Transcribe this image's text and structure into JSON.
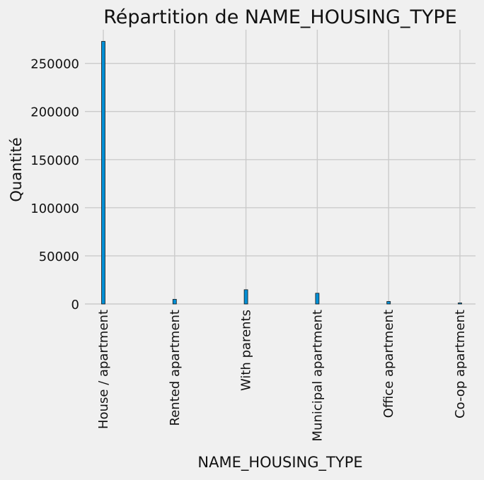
{
  "chart_data": {
    "type": "bar",
    "title": "Répartition de NAME_HOUSING_TYPE",
    "xlabel": "NAME_HOUSING_TYPE",
    "ylabel": "Quantité",
    "categories": [
      "House / apartment",
      "Rented apartment",
      "With parents",
      "Municipal apartment",
      "Office apartment",
      "Co-op apartment"
    ],
    "values": [
      272868,
      4881,
      14840,
      11183,
      2617,
      1122
    ],
    "yticks": [
      0,
      50000,
      100000,
      150000,
      200000,
      250000
    ],
    "ytick_labels": [
      "0",
      "50000",
      "100000",
      "150000",
      "200000",
      "250000"
    ],
    "ylim": [
      0,
      285000
    ],
    "grid": true,
    "colors": {
      "bar": "#008fd5",
      "bar_edge": "#1a1a1a",
      "grid": "#cbcbcb",
      "background": "#f0f0f0"
    }
  }
}
